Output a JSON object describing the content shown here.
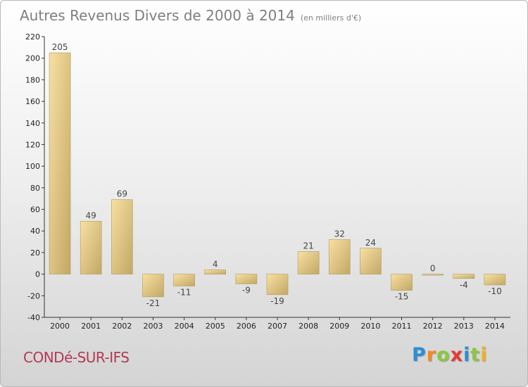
{
  "title": "Autres Revenus Divers de 2000 à 2014",
  "unit": "(en milliers d'€)",
  "commune": "CONDé-SUR-IFS",
  "logo": {
    "letters": [
      "P",
      "r",
      "o",
      "x",
      "i",
      "t",
      "i"
    ],
    "colors": [
      "#2a8fd6",
      "#f28a1c",
      "#8cc63f",
      "#e53935",
      "#2a8fd6",
      "#8cc63f",
      "#f2b01c"
    ]
  },
  "colors": {
    "bar_light": "#f7dc9c",
    "bar_dark": "#c4ac6a",
    "axis": "#333333"
  },
  "chart_data": {
    "type": "bar",
    "title": "Autres Revenus Divers de 2000 à 2014",
    "unit": "(en milliers d'€)",
    "categories": [
      "2000",
      "2001",
      "2002",
      "2003",
      "2004",
      "2005",
      "2006",
      "2007",
      "2008",
      "2009",
      "2010",
      "2011",
      "2012",
      "2013",
      "2014"
    ],
    "values": [
      205,
      49,
      69,
      -21,
      -11,
      4,
      -9,
      -19,
      21,
      32,
      24,
      -15,
      0,
      -4,
      -10
    ],
    "labels": [
      "205",
      "49",
      "69",
      "-21",
      "-11",
      "4",
      "-9",
      "-19",
      "21",
      "32",
      "24",
      "-15",
      "0",
      "-4",
      "-10"
    ],
    "ylim": [
      -40,
      220
    ],
    "yticks": [
      -40,
      -20,
      0,
      20,
      40,
      60,
      80,
      100,
      120,
      140,
      160,
      180,
      200,
      220
    ],
    "grid": false,
    "legend": "none"
  }
}
